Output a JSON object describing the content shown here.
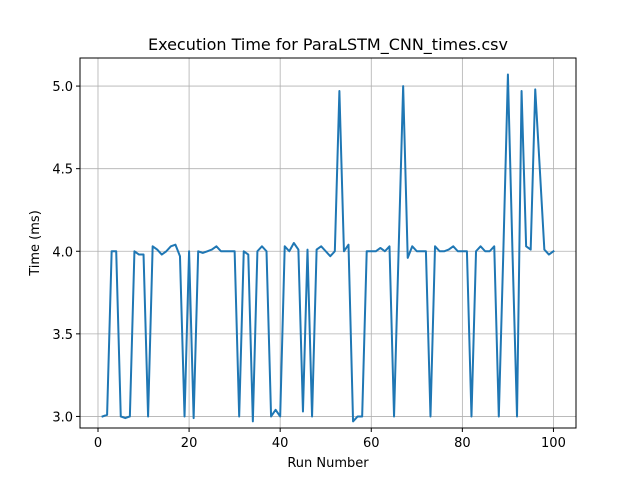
{
  "chart_data": {
    "type": "line",
    "title": "Execution Time for ParaLSTM_CNN_times.csv",
    "xlabel": "Run Number",
    "ylabel": "Time (ms)",
    "xlim": [
      -3.95,
      104.95
    ],
    "ylim": [
      2.93,
      5.17
    ],
    "x_ticks": [
      {
        "value": 0,
        "label": "0"
      },
      {
        "value": 20,
        "label": "20"
      },
      {
        "value": 40,
        "label": "40"
      },
      {
        "value": 60,
        "label": "60"
      },
      {
        "value": 80,
        "label": "80"
      },
      {
        "value": 100,
        "label": "100"
      }
    ],
    "y_ticks": [
      {
        "value": 3.0,
        "label": "3.0"
      },
      {
        "value": 3.5,
        "label": "3.5"
      },
      {
        "value": 4.0,
        "label": "4.0"
      },
      {
        "value": 4.5,
        "label": "4.5"
      },
      {
        "value": 5.0,
        "label": "5.0"
      }
    ],
    "grid": true,
    "series": [
      {
        "color": "#1f77b4",
        "x": [
          1,
          2,
          3,
          4,
          5,
          6,
          7,
          8,
          9,
          10,
          11,
          12,
          13,
          14,
          15,
          16,
          17,
          18,
          19,
          20,
          21,
          22,
          23,
          24,
          25,
          26,
          27,
          28,
          29,
          30,
          31,
          32,
          33,
          34,
          35,
          36,
          37,
          38,
          39,
          40,
          41,
          42,
          43,
          44,
          45,
          46,
          47,
          48,
          49,
          50,
          51,
          52,
          53,
          54,
          55,
          56,
          57,
          58,
          59,
          60,
          61,
          62,
          63,
          64,
          65,
          66,
          67,
          68,
          69,
          70,
          71,
          72,
          73,
          74,
          75,
          76,
          77,
          78,
          79,
          80,
          81,
          82,
          83,
          84,
          85,
          86,
          87,
          88,
          89,
          90,
          91,
          92,
          93,
          94,
          95,
          96,
          97,
          98,
          99,
          100
        ],
        "values": [
          3.0,
          3.01,
          4.0,
          4.0,
          3.0,
          2.99,
          3.0,
          4.0,
          3.98,
          3.98,
          3.0,
          4.03,
          4.01,
          3.98,
          4.0,
          4.03,
          4.04,
          3.97,
          3.0,
          4.0,
          2.99,
          4.0,
          3.99,
          4.0,
          4.01,
          4.03,
          4.0,
          4.0,
          4.0,
          4.0,
          3.0,
          4.0,
          3.98,
          2.97,
          4.0,
          4.03,
          4.0,
          3.0,
          3.04,
          3.0,
          4.03,
          4.0,
          4.05,
          4.01,
          3.03,
          4.01,
          3.0,
          4.01,
          4.03,
          4.0,
          3.97,
          4.0,
          4.97,
          4.0,
          4.04,
          2.97,
          3.0,
          3.0,
          4.0,
          4.0,
          4.0,
          4.02,
          4.0,
          4.03,
          3.0,
          4.0,
          5.0,
          3.96,
          4.03,
          4.0,
          4.0,
          4.0,
          3.0,
          4.03,
          4.0,
          4.0,
          4.01,
          4.03,
          4.0,
          4.0,
          4.0,
          3.0,
          4.0,
          4.03,
          4.0,
          4.0,
          4.03,
          3.0,
          4.0,
          5.07,
          4.0,
          3.0,
          4.97,
          4.03,
          4.01,
          4.98,
          4.5,
          4.01,
          3.98,
          4.0
        ]
      }
    ]
  }
}
